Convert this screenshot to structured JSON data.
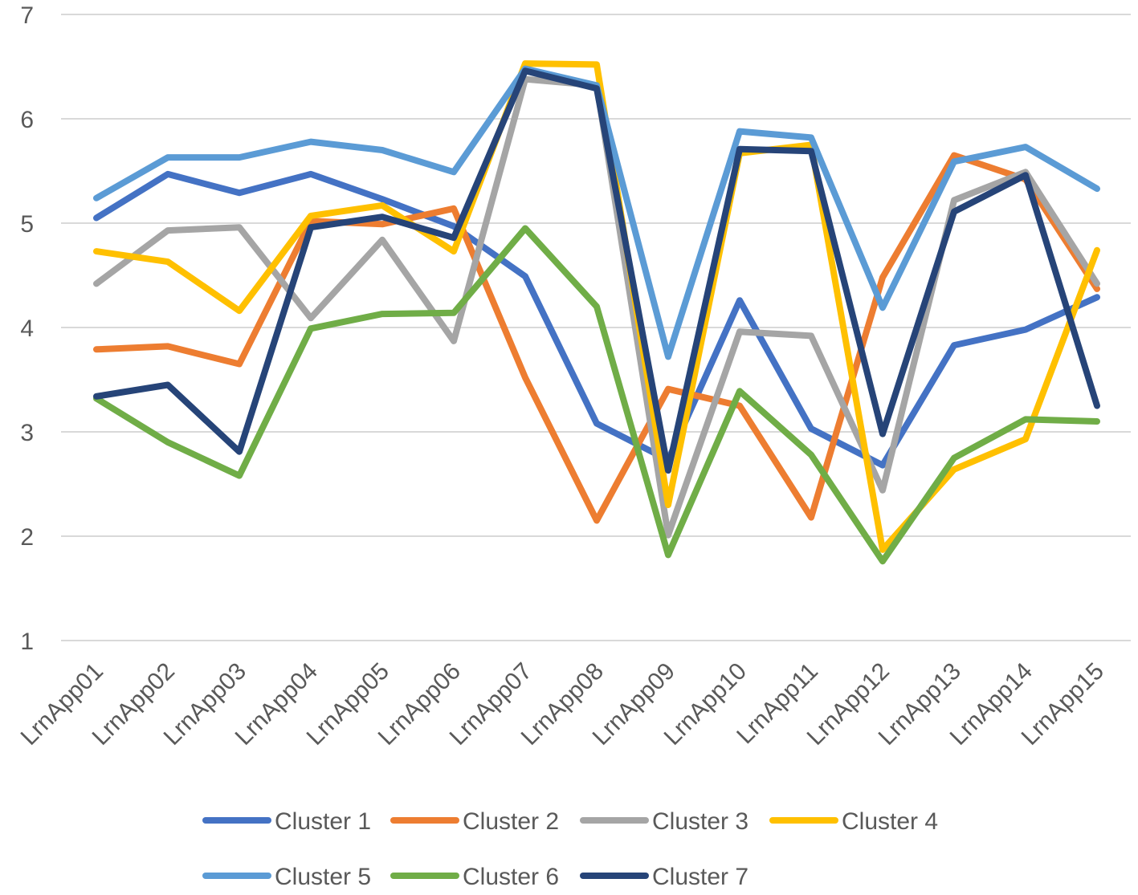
{
  "chart_data": {
    "type": "line",
    "title": "",
    "xlabel": "",
    "ylabel": "",
    "ylim": [
      1,
      7
    ],
    "y_ticks": [
      1,
      2,
      3,
      4,
      5,
      6,
      7
    ],
    "grid": true,
    "legend_position": "bottom",
    "categories": [
      "LrnApp01",
      "LrnApp02",
      "LrnApp03",
      "LrnApp04",
      "LrnApp05",
      "LrnApp06",
      "LrnApp07",
      "LrnApp08",
      "LrnApp09",
      "LrnApp10",
      "LrnApp11",
      "LrnApp12",
      "LrnApp13",
      "LrnApp14",
      "LrnApp15"
    ],
    "series": [
      {
        "name": "Cluster 1",
        "color": "#4472C4",
        "values": [
          5.05,
          5.47,
          5.29,
          5.47,
          5.23,
          4.97,
          4.49,
          3.08,
          2.73,
          4.26,
          3.03,
          2.68,
          3.83,
          3.98,
          4.29
        ]
      },
      {
        "name": "Cluster 2",
        "color": "#ED7D31",
        "values": [
          3.79,
          3.82,
          3.65,
          5.02,
          4.99,
          5.14,
          3.52,
          2.15,
          3.41,
          3.25,
          2.18,
          4.48,
          5.65,
          5.42,
          4.37
        ]
      },
      {
        "name": "Cluster 3",
        "color": "#A5A5A5",
        "values": [
          4.42,
          4.93,
          4.96,
          4.09,
          4.84,
          3.87,
          6.38,
          6.32,
          2.01,
          3.96,
          3.92,
          2.44,
          5.22,
          5.49,
          4.42
        ]
      },
      {
        "name": "Cluster 4",
        "color": "#FFC000",
        "values": [
          4.73,
          4.63,
          4.16,
          5.07,
          5.17,
          4.73,
          6.53,
          6.52,
          2.3,
          5.67,
          5.75,
          1.87,
          2.64,
          2.93,
          4.74
        ]
      },
      {
        "name": "Cluster 5",
        "color": "#5B9BD5",
        "values": [
          5.24,
          5.63,
          5.63,
          5.78,
          5.7,
          5.49,
          6.48,
          6.32,
          3.72,
          5.88,
          5.82,
          4.19,
          5.59,
          5.73,
          5.33
        ]
      },
      {
        "name": "Cluster 6",
        "color": "#70AD47",
        "values": [
          3.32,
          2.9,
          2.58,
          3.99,
          4.13,
          4.14,
          4.95,
          4.2,
          1.82,
          3.39,
          2.78,
          1.76,
          2.75,
          3.12,
          3.1
        ]
      },
      {
        "name": "Cluster 7",
        "color": "#264478",
        "values": [
          3.34,
          3.45,
          2.81,
          4.96,
          5.06,
          4.86,
          6.46,
          6.29,
          2.63,
          5.71,
          5.69,
          2.98,
          5.11,
          5.46,
          3.25
        ]
      }
    ]
  }
}
